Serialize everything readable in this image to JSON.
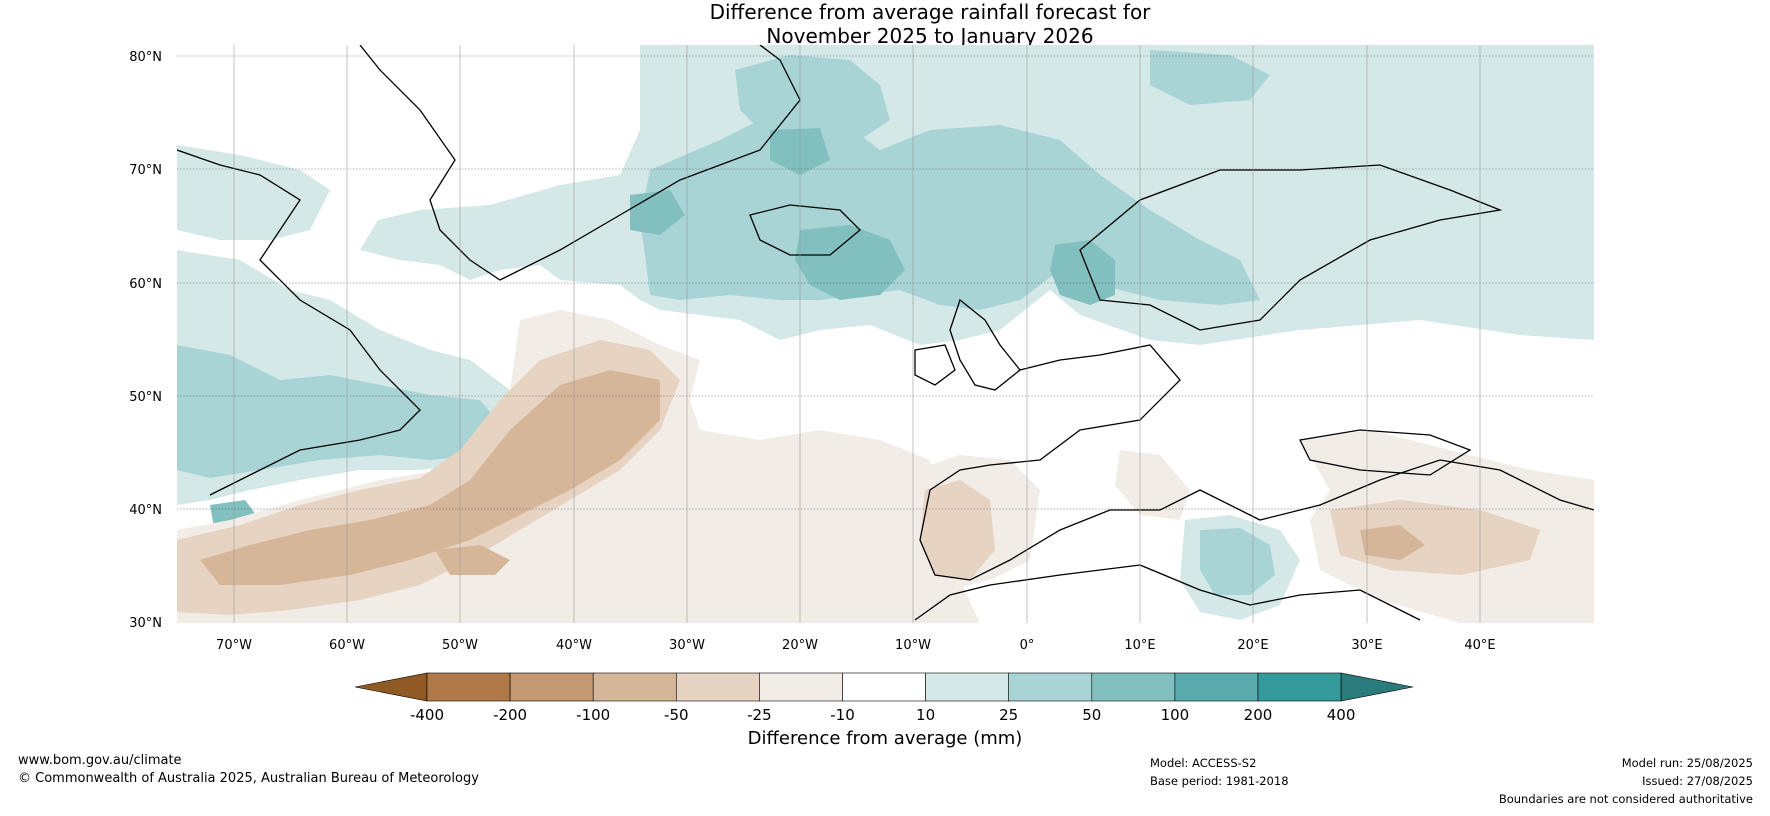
{
  "title": {
    "line1": "Difference from average rainfall forecast for",
    "line2": "November 2025 to January 2026"
  },
  "map": {
    "latitude_labels": [
      "80°N",
      "70°N",
      "60°N",
      "50°N",
      "40°N",
      "30°N"
    ],
    "longitude_labels": [
      "70°W",
      "60°W",
      "50°W",
      "40°W",
      "30°W",
      "20°W",
      "10°W",
      "0°",
      "10°E",
      "20°E",
      "30°E",
      "40°E"
    ],
    "extent": {
      "lon_min": -75,
      "lon_max": 50,
      "lat_min": 30,
      "lat_max": 81
    }
  },
  "colorbar": {
    "title": "Difference from average (mm)",
    "tick_labels": [
      "-400",
      "-200",
      "-100",
      "-50",
      "-25",
      "-10",
      "10",
      "25",
      "50",
      "100",
      "200",
      "400"
    ],
    "colors": [
      "#8f5a24",
      "#b07a48",
      "#c49872",
      "#d6b699",
      "#e6d3c2",
      "#f2ece6",
      "#ffffff",
      "#d4e8e8",
      "#a9d4d5",
      "#82c0c0",
      "#5aabad",
      "#359a9b",
      "#2a7b7c"
    ]
  },
  "footer": {
    "website": "www.bom.gov.au/climate",
    "copyright": "© Commonwealth of Australia 2025, Australian Bureau of Meteorology",
    "model": "Model: ACCESS-S2",
    "base_period": "Base period: 1981-2018",
    "model_run": "Model run: 25/08/2025",
    "issued": "Issued: 27/08/2025",
    "disclaimer": "Boundaries are not considered authoritative"
  }
}
